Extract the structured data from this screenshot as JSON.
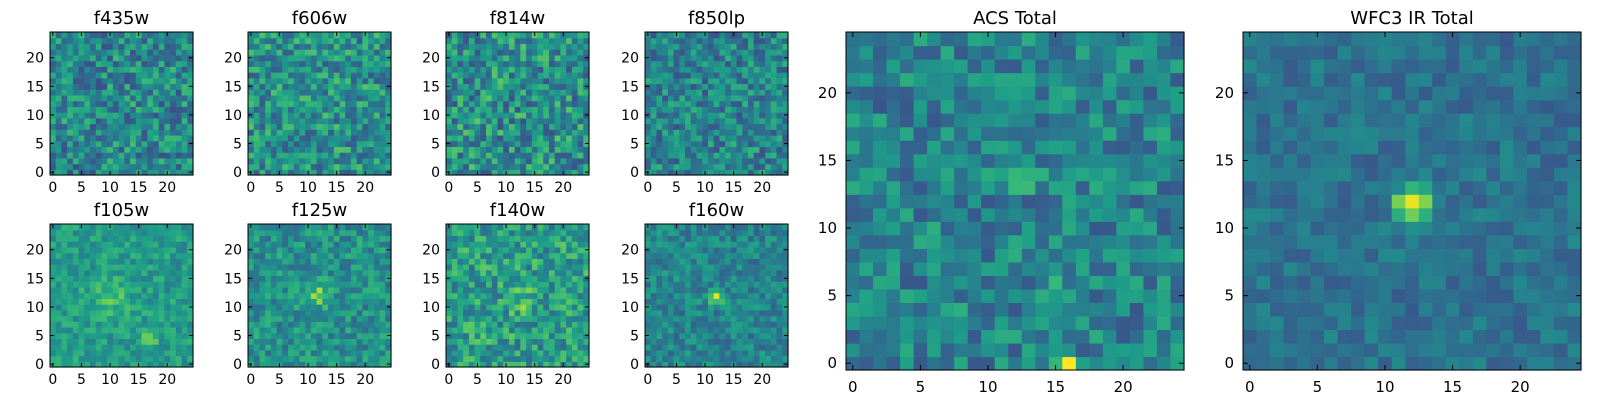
{
  "figure": {
    "colormap": "viridis",
    "colormap_stops": [
      "#440154",
      "#482878",
      "#3e4989",
      "#31688e",
      "#26828e",
      "#1f9e89",
      "#35b779",
      "#6ece58",
      "#b5de2b",
      "#fde725"
    ]
  },
  "chart_data": [
    {
      "type": "heatmap",
      "title": "f435w",
      "grid": [
        25,
        25
      ],
      "background": 0.47,
      "noise": 0.22,
      "peaks": [],
      "xticks": [
        "0",
        "5",
        "10",
        "15",
        "20"
      ],
      "yticks": [
        "0",
        "5",
        "10",
        "15",
        "20"
      ],
      "xlim": [
        -0.5,
        24.5
      ],
      "ylim": [
        -0.5,
        24.5
      ]
    },
    {
      "type": "heatmap",
      "title": "f606w",
      "grid": [
        25,
        25
      ],
      "background": 0.5,
      "noise": 0.22,
      "peaks": [],
      "xticks": [
        "0",
        "5",
        "10",
        "15",
        "20"
      ],
      "yticks": [
        "0",
        "5",
        "10",
        "15",
        "20"
      ],
      "xlim": [
        -0.5,
        24.5
      ],
      "ylim": [
        -0.5,
        24.5
      ]
    },
    {
      "type": "heatmap",
      "title": "f814w",
      "grid": [
        25,
        25
      ],
      "background": 0.5,
      "noise": 0.24,
      "peaks": [],
      "xticks": [
        "0",
        "5",
        "10",
        "15",
        "20"
      ],
      "yticks": [
        "0",
        "5",
        "10",
        "15",
        "20"
      ],
      "xlim": [
        -0.5,
        24.5
      ],
      "ylim": [
        -0.5,
        24.5
      ]
    },
    {
      "type": "heatmap",
      "title": "f850lp",
      "grid": [
        25,
        25
      ],
      "background": 0.45,
      "noise": 0.2,
      "peaks": [],
      "xticks": [
        "0",
        "5",
        "10",
        "15",
        "20"
      ],
      "yticks": [
        "0",
        "5",
        "10",
        "15",
        "20"
      ],
      "xlim": [
        -0.5,
        24.5
      ],
      "ylim": [
        -0.5,
        24.5
      ]
    },
    {
      "type": "heatmap",
      "title": "f105w",
      "grid": [
        25,
        25
      ],
      "background": 0.55,
      "noise": 0.12,
      "peaks": [
        {
          "x": 10,
          "y": 12,
          "amp": 0.15,
          "sigma": 2.5
        },
        {
          "x": 17,
          "y": 5,
          "amp": 0.25,
          "sigma": 1.0
        }
      ],
      "xticks": [
        "0",
        "5",
        "10",
        "15",
        "20"
      ],
      "yticks": [
        "0",
        "5",
        "10",
        "15",
        "20"
      ],
      "xlim": [
        -0.5,
        24.5
      ],
      "ylim": [
        -0.5,
        24.5
      ]
    },
    {
      "type": "heatmap",
      "title": "f125w",
      "grid": [
        25,
        25
      ],
      "background": 0.5,
      "noise": 0.16,
      "peaks": [
        {
          "x": 12,
          "y": 12,
          "amp": 0.35,
          "sigma": 1.2
        }
      ],
      "xticks": [
        "0",
        "5",
        "10",
        "15",
        "20"
      ],
      "yticks": [
        "0",
        "5",
        "10",
        "15",
        "20"
      ],
      "xlim": [
        -0.5,
        24.5
      ],
      "ylim": [
        -0.5,
        24.5
      ]
    },
    {
      "type": "heatmap",
      "title": "f140w",
      "grid": [
        25,
        25
      ],
      "background": 0.55,
      "noise": 0.2,
      "peaks": [
        {
          "x": 13,
          "y": 11,
          "amp": 0.2,
          "sigma": 1.4
        }
      ],
      "xticks": [
        "0",
        "5",
        "10",
        "15",
        "20"
      ],
      "yticks": [
        "0",
        "5",
        "10",
        "15",
        "20"
      ],
      "xlim": [
        -0.5,
        24.5
      ],
      "ylim": [
        -0.5,
        24.5
      ]
    },
    {
      "type": "heatmap",
      "title": "f160w",
      "grid": [
        25,
        25
      ],
      "background": 0.45,
      "noise": 0.14,
      "peaks": [
        {
          "x": 12,
          "y": 12,
          "amp": 0.6,
          "sigma": 0.8
        }
      ],
      "xticks": [
        "0",
        "5",
        "10",
        "15",
        "20"
      ],
      "yticks": [
        "0",
        "5",
        "10",
        "15",
        "20"
      ],
      "xlim": [
        -0.5,
        24.5
      ],
      "ylim": [
        -0.5,
        24.5
      ]
    },
    {
      "type": "heatmap",
      "title": "ACS Total",
      "grid": [
        25,
        25
      ],
      "background": 0.45,
      "noise": 0.18,
      "peaks": [
        {
          "x": 16,
          "y": 0,
          "amp": 0.55,
          "sigma": 0.5
        },
        {
          "x": 12,
          "y": 13,
          "amp": 0.35,
          "sigma": 0.5
        },
        {
          "x": 15,
          "y": 5,
          "amp": 0.2,
          "sigma": 0.6
        }
      ],
      "xticks": [
        "0",
        "5",
        "10",
        "15",
        "20"
      ],
      "yticks": [
        "0",
        "5",
        "10",
        "15",
        "20"
      ],
      "xlim": [
        -0.5,
        24.5
      ],
      "ylim": [
        -0.5,
        24.5
      ]
    },
    {
      "type": "heatmap",
      "title": "WFC3 IR Total",
      "grid": [
        25,
        25
      ],
      "background": 0.38,
      "noise": 0.1,
      "peaks": [
        {
          "x": 12,
          "y": 12,
          "amp": 0.62,
          "sigma": 0.9
        }
      ],
      "xticks": [
        "0",
        "5",
        "10",
        "15",
        "20"
      ],
      "yticks": [
        "0",
        "5",
        "10",
        "15",
        "20"
      ],
      "xlim": [
        -0.5,
        24.5
      ],
      "ylim": [
        -0.5,
        24.5
      ]
    }
  ]
}
